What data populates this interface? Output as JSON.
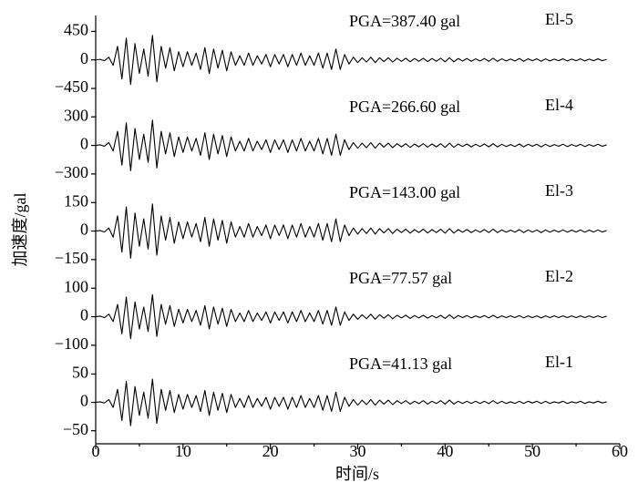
{
  "chart_data": {
    "type": "line",
    "xlabel": "时间/s",
    "ylabel": "加速度/gal",
    "xlim": [
      0,
      60
    ],
    "xticks": [
      0,
      10,
      20,
      30,
      40,
      50,
      60
    ],
    "xminorticks": [
      5,
      15,
      25,
      35,
      45,
      55
    ],
    "x": [
      0,
      0.5,
      1,
      1.5,
      2,
      2.5,
      3,
      3.5,
      4,
      4.5,
      5,
      5.5,
      6,
      6.5,
      7,
      7.5,
      8,
      8.5,
      9,
      9.5,
      10,
      10.5,
      11,
      11.5,
      12,
      12.5,
      13,
      13.5,
      14,
      14.5,
      15,
      15.5,
      16,
      16.5,
      17,
      17.5,
      18,
      18.5,
      19,
      19.5,
      20,
      20.5,
      21,
      21.5,
      22,
      22.5,
      23,
      23.5,
      24,
      24.5,
      25,
      25.5,
      26,
      26.5,
      27,
      27.5,
      28,
      28.5,
      29,
      29.5,
      30,
      30.5,
      31,
      31.5,
      32,
      32.5,
      33,
      33.5,
      34,
      34.5,
      35,
      35.5,
      36,
      36.5,
      37,
      37.5,
      38,
      38.5,
      39,
      39.5,
      40,
      40.5,
      41,
      41.5,
      42,
      42.5,
      43,
      43.5,
      44,
      44.5,
      45,
      45.5,
      46,
      46.5,
      47,
      47.5,
      48,
      48.5,
      49,
      49.5,
      50,
      50.5,
      51,
      51.5,
      52,
      52.5,
      53,
      53.5,
      54,
      54.5,
      55,
      55.5,
      56,
      56.5,
      57,
      57.5,
      58,
      58.5
    ],
    "panels": [
      {
        "name": "El-5",
        "annotation": "PGA=387.40  gal",
        "color": "#000000",
        "ylim": [
          -650,
          700
        ],
        "yticks": [
          {
            "value": -450,
            "label": "−450"
          },
          0,
          450
        ],
        "values": [
          0,
          9,
          -13,
          43,
          -86,
          215,
          -301,
          344,
          -387,
          258,
          -215,
          172,
          -258,
          387,
          -344,
          215,
          -129,
          194,
          -172,
          129,
          -108,
          129,
          -86,
          108,
          -151,
          194,
          -215,
          172,
          -129,
          151,
          -172,
          129,
          -86,
          65,
          -86,
          108,
          -86,
          65,
          -65,
          86,
          -108,
          86,
          -65,
          86,
          -108,
          86,
          -86,
          108,
          -86,
          65,
          -86,
          108,
          -129,
          108,
          -151,
          172,
          -151,
          86,
          -65,
          43,
          -43,
          34,
          -34,
          43,
          -43,
          34,
          -26,
          34,
          -34,
          26,
          -22,
          26,
          -30,
          22,
          -22,
          26,
          -26,
          22,
          -22,
          26,
          -30,
          34,
          -30,
          22,
          -17,
          22,
          -22,
          17,
          -17,
          22,
          -22,
          26,
          -22,
          17,
          -17,
          13,
          -17,
          22,
          -22,
          17,
          -13,
          17,
          -22,
          17,
          -17,
          13,
          -13,
          17,
          -17,
          13,
          -13,
          17,
          -17,
          13,
          -13,
          17,
          -13,
          9
        ]
      },
      {
        "name": "El-4",
        "annotation": "PGA=266.60  gal",
        "color": "#000000",
        "ylim": [
          -435,
          465
        ],
        "yticks": [
          {
            "value": -300,
            "label": "−300"
          },
          0,
          300
        ],
        "values": [
          0,
          6,
          -9,
          30,
          -59,
          148,
          -207,
          237,
          -266,
          178,
          -148,
          118,
          -178,
          266,
          -237,
          148,
          -89,
          133,
          -118,
          89,
          -74,
          89,
          -59,
          74,
          -104,
          133,
          -148,
          118,
          -89,
          104,
          -118,
          89,
          -59,
          44,
          -59,
          74,
          -59,
          44,
          -44,
          59,
          -74,
          59,
          -44,
          59,
          -74,
          59,
          -59,
          74,
          -59,
          44,
          -59,
          74,
          -89,
          74,
          -104,
          118,
          -104,
          59,
          -44,
          30,
          -30,
          24,
          -24,
          30,
          -30,
          24,
          -18,
          24,
          -24,
          18,
          -15,
          18,
          -21,
          15,
          -15,
          18,
          -18,
          15,
          -15,
          18,
          -21,
          24,
          -21,
          15,
          -12,
          15,
          -15,
          12,
          -12,
          15,
          -15,
          18,
          -15,
          12,
          -12,
          9,
          -12,
          15,
          -15,
          12,
          -9,
          12,
          -15,
          12,
          -12,
          9,
          -9,
          12,
          -12,
          9,
          -9,
          12,
          -12,
          9,
          -9,
          12,
          -9,
          6
        ]
      },
      {
        "name": "El-3",
        "annotation": "PGA=143.00  gal",
        "color": "#000000",
        "ylim": [
          -218,
          233
        ],
        "yticks": [
          {
            "value": -150,
            "label": "−150"
          },
          0,
          150
        ],
        "values": [
          0,
          3,
          -5,
          16,
          -32,
          80,
          -111,
          127,
          -143,
          95,
          -80,
          64,
          -95,
          143,
          -127,
          80,
          -48,
          72,
          -64,
          48,
          -40,
          48,
          -32,
          40,
          -56,
          72,
          -80,
          64,
          -48,
          56,
          -64,
          48,
          -32,
          24,
          -32,
          40,
          -32,
          24,
          -24,
          32,
          -40,
          32,
          -24,
          32,
          -40,
          32,
          -32,
          40,
          -32,
          24,
          -32,
          40,
          -48,
          40,
          -56,
          64,
          -56,
          32,
          -24,
          16,
          -16,
          13,
          -13,
          16,
          -16,
          13,
          -10,
          13,
          -13,
          10,
          -8,
          10,
          -11,
          8,
          -8,
          10,
          -10,
          8,
          -8,
          10,
          -11,
          13,
          -11,
          8,
          -6,
          8,
          -8,
          6,
          -6,
          8,
          -8,
          10,
          -8,
          6,
          -6,
          5,
          -6,
          8,
          -8,
          6,
          -5,
          6,
          -8,
          6,
          -6,
          5,
          -5,
          6,
          -6,
          5,
          -5,
          6,
          -6,
          5,
          -5,
          6,
          -5,
          3
        ]
      },
      {
        "name": "El-2",
        "annotation": "PGA=77.57 gal",
        "color": "#000000",
        "ylim": [
          -145,
          155
        ],
        "yticks": [
          {
            "value": -100,
            "label": "−100"
          },
          0,
          100
        ],
        "values": [
          0,
          2,
          -3,
          9,
          -17,
          43,
          -60,
          69,
          -77,
          52,
          -43,
          34,
          -52,
          77,
          -69,
          43,
          -26,
          39,
          -34,
          26,
          -22,
          26,
          -17,
          22,
          -30,
          39,
          -43,
          34,
          -26,
          30,
          -34,
          26,
          -17,
          13,
          -17,
          22,
          -17,
          13,
          -13,
          17,
          -22,
          17,
          -13,
          17,
          -22,
          17,
          -17,
          22,
          -17,
          13,
          -17,
          22,
          -26,
          22,
          -30,
          34,
          -30,
          17,
          -13,
          9,
          -9,
          7,
          -7,
          9,
          -9,
          7,
          -5,
          7,
          -7,
          5,
          -4,
          5,
          -6,
          4,
          -4,
          5,
          -5,
          4,
          -4,
          5,
          -6,
          7,
          -6,
          4,
          -3,
          4,
          -4,
          3,
          -3,
          4,
          -4,
          5,
          -4,
          3,
          -3,
          3,
          -3,
          4,
          -4,
          3,
          -3,
          3,
          -4,
          3,
          -3,
          3,
          -3,
          3,
          -3,
          3,
          -3,
          3,
          -3,
          3,
          -3,
          3,
          -3,
          2
        ]
      },
      {
        "name": "El-1",
        "annotation": "PGA=41.13 gal",
        "color": "#000000",
        "ylim": [
          -73,
          78
        ],
        "yticks": [
          {
            "value": -50,
            "label": "−50"
          },
          0,
          50
        ],
        "values": [
          0,
          1,
          -1,
          5,
          -9,
          23,
          -32,
          37,
          -41,
          28,
          -23,
          18,
          -28,
          41,
          -37,
          23,
          -14,
          21,
          -18,
          14,
          -12,
          14,
          -9,
          12,
          -16,
          21,
          -23,
          18,
          -14,
          16,
          -18,
          14,
          -9,
          7,
          -9,
          12,
          -9,
          7,
          -7,
          9,
          -12,
          9,
          -7,
          9,
          -12,
          9,
          -9,
          12,
          -9,
          7,
          -9,
          12,
          -14,
          12,
          -16,
          18,
          -16,
          9,
          -7,
          5,
          -5,
          4,
          -4,
          5,
          -5,
          4,
          -3,
          4,
          -4,
          3,
          -2,
          3,
          -3,
          2,
          -2,
          3,
          -3,
          2,
          -2,
          3,
          -3,
          4,
          -3,
          2,
          -2,
          2,
          -2,
          2,
          -2,
          2,
          -2,
          3,
          -2,
          2,
          -2,
          1,
          -2,
          2,
          -2,
          2,
          -1,
          2,
          -2,
          2,
          -2,
          1,
          -1,
          2,
          -2,
          1,
          -1,
          2,
          -2,
          1,
          -1,
          2,
          -1,
          1
        ]
      }
    ]
  }
}
